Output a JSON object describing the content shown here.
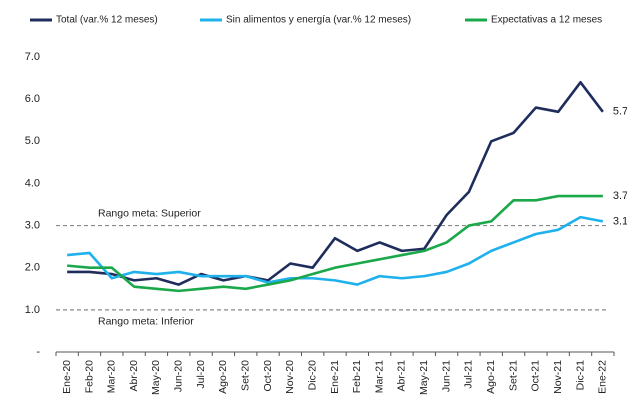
{
  "chart_data": {
    "type": "line",
    "categories": [
      "Ene-20",
      "Feb-20",
      "Mar-20",
      "Abr-20",
      "May-20",
      "Jun-20",
      "Jul-20",
      "Ago-20",
      "Set-20",
      "Oct-20",
      "Nov-20",
      "Dic-20",
      "Ene-21",
      "Feb-21",
      "Mar-21",
      "Abr-21",
      "May-21",
      "Jun-21",
      "Jul-21",
      "Ago-21",
      "Set-21",
      "Oct-21",
      "Nov-21",
      "Dic-21",
      "Ene-22"
    ],
    "series": [
      {
        "name": "Total (var.% 12 meses)",
        "color": "#1f2d5c",
        "values": [
          1.9,
          1.9,
          1.85,
          1.7,
          1.75,
          1.6,
          1.85,
          1.7,
          1.8,
          1.7,
          2.1,
          2.0,
          2.7,
          2.4,
          2.6,
          2.4,
          2.45,
          3.25,
          3.8,
          5.0,
          5.2,
          5.8,
          5.7,
          6.4,
          5.7
        ]
      },
      {
        "name": "Sin alimentos y energía (var.% 12 meses)",
        "color": "#1eb1ec",
        "values": [
          2.3,
          2.35,
          1.75,
          1.9,
          1.85,
          1.9,
          1.8,
          1.8,
          1.8,
          1.65,
          1.75,
          1.75,
          1.7,
          1.6,
          1.8,
          1.75,
          1.8,
          1.9,
          2.1,
          2.4,
          2.6,
          2.8,
          2.9,
          3.2,
          3.1
        ]
      },
      {
        "name": "Expectativas a 12 meses",
        "color": "#1aa84a",
        "values": [
          2.05,
          2.0,
          2.0,
          1.55,
          1.5,
          1.45,
          1.5,
          1.55,
          1.5,
          1.6,
          1.7,
          1.85,
          2.0,
          2.1,
          2.2,
          2.3,
          2.4,
          2.6,
          3.0,
          3.1,
          3.6,
          3.6,
          3.7,
          3.7,
          3.7
        ]
      }
    ],
    "ylim": [
      0,
      7
    ],
    "yticks": [
      {
        "value": 0,
        "label": "-"
      },
      {
        "value": 1,
        "label": "1.0"
      },
      {
        "value": 2,
        "label": "2.0"
      },
      {
        "value": 3,
        "label": "3.0"
      },
      {
        "value": 4,
        "label": "4.0"
      },
      {
        "value": 5,
        "label": "5.0"
      },
      {
        "value": 6,
        "label": "6.0"
      },
      {
        "value": 7,
        "label": "7.0"
      }
    ],
    "reference_lines": [
      {
        "value": 3,
        "label": "Rango meta: Superior"
      },
      {
        "value": 1,
        "label": "Rango meta: Inferior"
      }
    ],
    "grid": false,
    "legend": "top"
  }
}
